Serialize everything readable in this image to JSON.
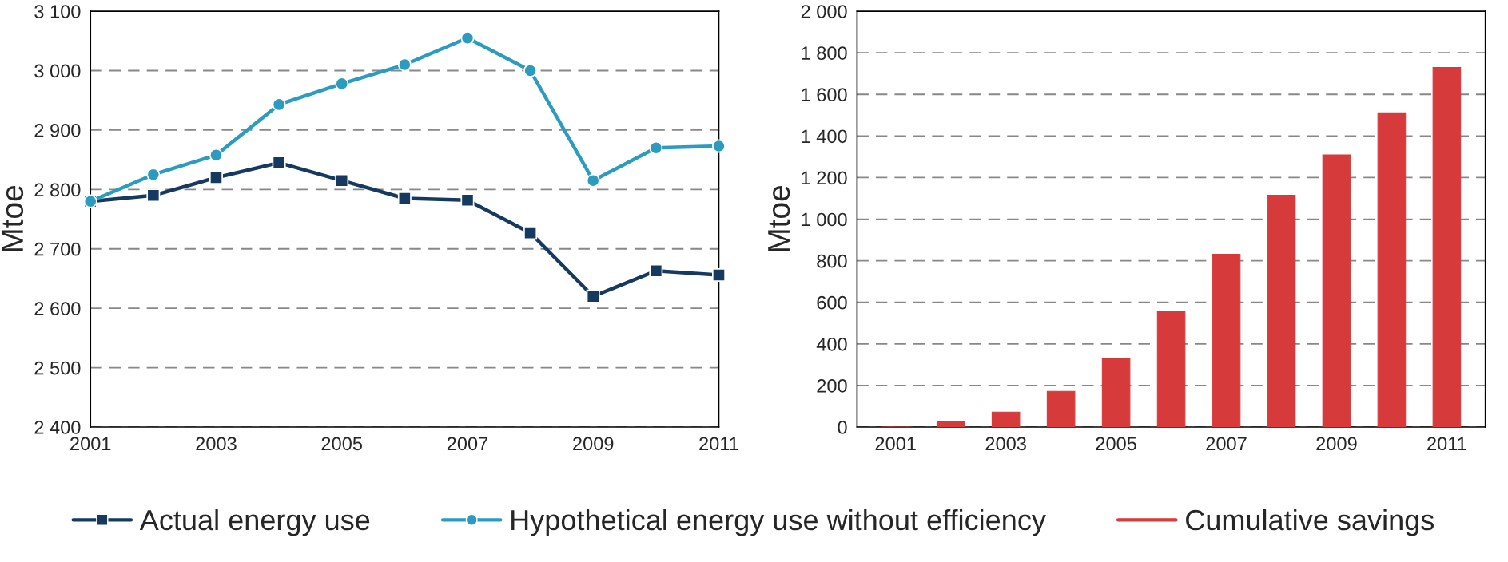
{
  "chart_data": [
    {
      "type": "line",
      "ylabel": "Mtoe",
      "x": [
        2001,
        2002,
        2003,
        2004,
        2005,
        2006,
        2007,
        2008,
        2009,
        2010,
        2011
      ],
      "xlim": [
        2001,
        2011
      ],
      "xticks": [
        2001,
        2003,
        2005,
        2007,
        2009,
        2011
      ],
      "ylim": [
        2400,
        3100
      ],
      "yticks": [
        {
          "value": 2400,
          "label": "2 400"
        },
        {
          "value": 2500,
          "label": "2 500"
        },
        {
          "value": 2600,
          "label": "2 600"
        },
        {
          "value": 2700,
          "label": "2 700"
        },
        {
          "value": 2800,
          "label": "2 800"
        },
        {
          "value": 2900,
          "label": "2 900"
        },
        {
          "value": 3000,
          "label": "3 000"
        },
        {
          "value": 3100,
          "label": "3 100"
        }
      ],
      "grid": "y",
      "legend": "bottom",
      "series": [
        {
          "name": "Actual energy use",
          "color": "#163a5f",
          "marker": "square",
          "values": [
            2780,
            2790,
            2820,
            2845,
            2815,
            2785,
            2782,
            2727,
            2620,
            2663,
            2656
          ]
        },
        {
          "name": "Hypothetical energy use without efficiency",
          "color": "#2b9cc0",
          "marker": "circle",
          "values": [
            2780,
            2825,
            2858,
            2943,
            2978,
            3010,
            3055,
            3000,
            2815,
            2870,
            2873
          ]
        }
      ]
    },
    {
      "type": "bar",
      "ylabel": "Mtoe",
      "categories": [
        "2001",
        null,
        "2003",
        null,
        "2005",
        null,
        "2007",
        null,
        "2009",
        null,
        "2011"
      ],
      "ylim": [
        0,
        2000
      ],
      "yticks": [
        0,
        200,
        400,
        600,
        800,
        {
          "value": 1000,
          "label": "1 000"
        },
        {
          "value": 1200,
          "label": "1 200"
        },
        {
          "value": 1400,
          "label": "1 400"
        },
        {
          "value": 1600,
          "label": "1 600"
        },
        {
          "value": 1800,
          "label": "1 800"
        },
        {
          "value": 2000,
          "label": "2 000"
        }
      ],
      "grid": "y",
      "legend": "bottom",
      "series": [
        {
          "name": "Cumulative savings",
          "color": "#d63a3a",
          "values": [
            0,
            25,
            72,
            172,
            330,
            555,
            831,
            1115,
            1309,
            1512,
            1729
          ]
        }
      ]
    }
  ]
}
